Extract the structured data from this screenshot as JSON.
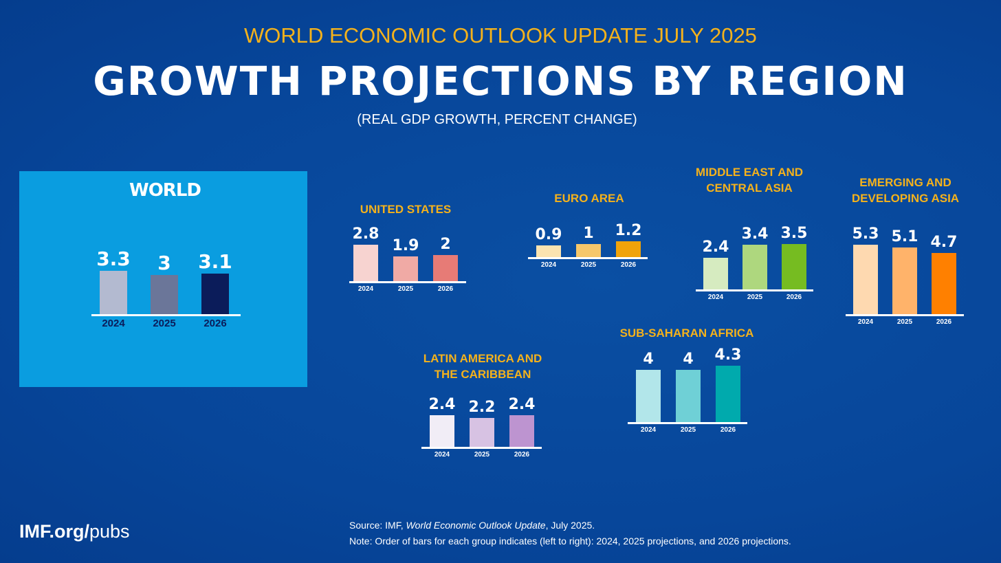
{
  "header": {
    "supertitle": "WORLD ECONOMIC OUTLOOK UPDATE JULY 2025",
    "title": "GROWTH PROJECTIONS BY REGION",
    "subtitle": "(REAL GDP GROWTH, PERCENT CHANGE)"
  },
  "chart_data": [
    {
      "type": "bar",
      "title": "WORLD",
      "categories": [
        "2024",
        "2025",
        "2026"
      ],
      "values": [
        3.3,
        3.0,
        3.1
      ],
      "colors": [
        "#b3bad0",
        "#6b7699",
        "#0b1c5a"
      ]
    },
    {
      "type": "bar",
      "title": "UNITED STATES",
      "categories": [
        "2024",
        "2025",
        "2026"
      ],
      "values": [
        2.8,
        1.9,
        2.0
      ],
      "colors": [
        "#f7d3d0",
        "#f0aaa5",
        "#e77b76"
      ]
    },
    {
      "type": "bar",
      "title": "EURO AREA",
      "categories": [
        "2024",
        "2025",
        "2026"
      ],
      "values": [
        0.9,
        1.0,
        1.2
      ],
      "colors": [
        "#fbe3b0",
        "#f6c76a",
        "#f0a30a"
      ]
    },
    {
      "type": "bar",
      "title": "MIDDLE EAST AND\nCENTRAL ASIA",
      "categories": [
        "2024",
        "2025",
        "2026"
      ],
      "values": [
        2.4,
        3.4,
        3.5
      ],
      "colors": [
        "#d6ebc0",
        "#aed77e",
        "#76bc21"
      ]
    },
    {
      "type": "bar",
      "title": "EMERGING AND\nDEVELOPING ASIA",
      "categories": [
        "2024",
        "2025",
        "2026"
      ],
      "values": [
        5.3,
        5.1,
        4.7
      ],
      "colors": [
        "#fed9b0",
        "#ffb36a",
        "#ff8000"
      ]
    },
    {
      "type": "bar",
      "title": "LATIN AMERICA AND\nTHE CARIBBEAN",
      "categories": [
        "2024",
        "2025",
        "2026"
      ],
      "values": [
        2.4,
        2.2,
        2.4
      ],
      "colors": [
        "#f1edf6",
        "#d7c2e3",
        "#bd94d0"
      ]
    },
    {
      "type": "bar",
      "title": "SUB-SAHARAN AFRICA",
      "categories": [
        "2024",
        "2025",
        "2026"
      ],
      "values": [
        4.0,
        4.0,
        4.3
      ],
      "colors": [
        "#b2e6ea",
        "#6fd0d6",
        "#00aaad"
      ]
    }
  ],
  "footer": {
    "logo_bold": "IMF.org/",
    "logo_light": "pubs",
    "source_prefix": "Source:  IMF, ",
    "source_italic": "World Economic Outlook Update",
    "source_suffix": ", July 2025.",
    "note": "Note:  Order of bars for each group indicates (left to right): 2024, 2025 projections, and 2026 projections."
  }
}
